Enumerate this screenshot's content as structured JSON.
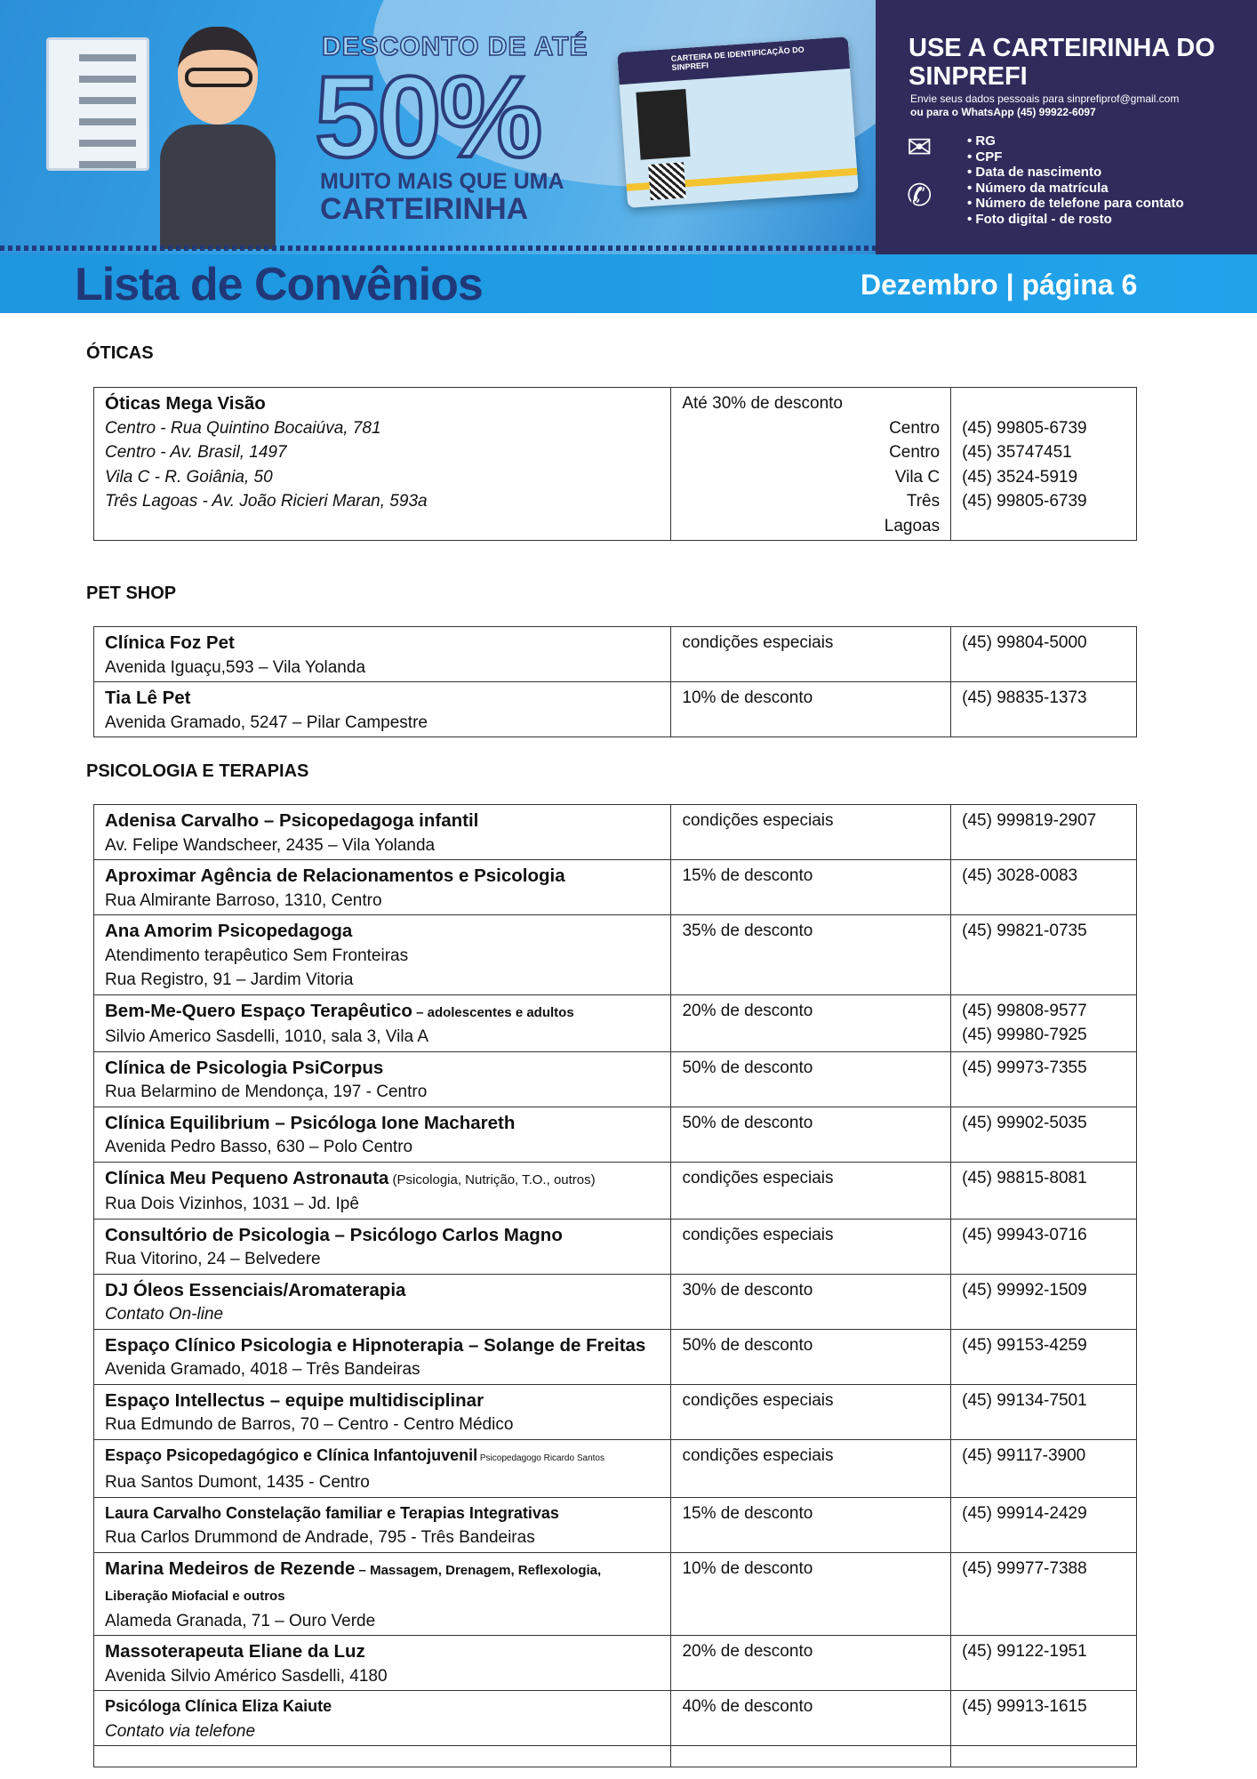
{
  "banner": {
    "desconto_top": "DESCONTO DE ATÉ",
    "desconto_value": "50%",
    "muito_mais": "MUITO MAIS QUE UMA",
    "carteirinha": "CARTEIRINHA",
    "card_title": "CARTEIRA DE IDENTIFICAÇÃO DO SINPREFI",
    "right_title": "USE A  CARTEIRINHA DO SINPREFI",
    "info_line1": "Envie seus dados pessoais para sinprefiprof@gmail.com",
    "info_line2": "ou para o WhatsApp (45) 99922-6097",
    "requirements": [
      "• RG",
      "• CPF",
      "• Data de nascimento",
      "• Número da matrícula",
      "• Número de telefone para contato",
      "• Foto digital - de rosto"
    ],
    "list_title": "Lista de Convênios",
    "page_label": "Dezembro | página 6",
    "colors": {
      "navy": "#2f2c5c",
      "blue": "#21a3ea",
      "title": "#213878"
    }
  },
  "oticas": {
    "heading": "ÓTICAS",
    "name": "Óticas Mega Visão",
    "discount": "Até 30% de desconto",
    "addresses": [
      "Centro - Rua Quintino Bocaiúva, 781",
      "Centro - Av. Brasil, 1497",
      "Vila C - R. Goiânia, 50",
      "Três Lagoas - Av. João Ricieri Maran, 593a"
    ],
    "locations": [
      "Centro",
      "Centro",
      "Vila C",
      "Três",
      "Lagoas"
    ],
    "phones": [
      "(45) 99805-6739",
      "(45) 35747451",
      "(45) 3524-5919",
      "(45) 99805-6739"
    ]
  },
  "petshop": {
    "heading": "PET SHOP",
    "rows": [
      {
        "name": "Clínica Foz Pet",
        "address": "Avenida Iguaçu,593 – Vila Yolanda",
        "discount": "condições especiais",
        "phone": "(45) 99804-5000"
      },
      {
        "name": "Tia Lê Pet",
        "address": "Avenida Gramado, 5247 – Pilar Campestre",
        "discount": "10% de desconto",
        "phone": "(45) 98835-1373"
      }
    ]
  },
  "psicologia": {
    "heading": "PSICOLOGIA E TERAPIAS",
    "rows": [
      {
        "name": "Adenisa Carvalho – Psicopedagoga infantil",
        "lines": [
          "Av. Felipe Wandscheer, 2435 – Vila Yolanda"
        ],
        "discount": "condições especiais",
        "phones": [
          "(45) 999819-2907"
        ]
      },
      {
        "name": "Aproximar Agência de Relacionamentos e Psicologia",
        "lines": [
          "Rua Almirante Barroso, 1310, Centro"
        ],
        "discount": "15% de desconto",
        "phones": [
          "(45) 3028-0083"
        ]
      },
      {
        "name": "Ana Amorim Psicopedagoga",
        "lines": [
          "Atendimento terapêutico Sem Fronteiras",
          "Rua Registro, 91 – Jardim Vitoria"
        ],
        "discount": "35% de desconto",
        "phones": [
          "(45) 99821-0735"
        ]
      },
      {
        "name": "Bem-Me-Quero Espaço Terapêutico",
        "suffix": " – adolescentes e adultos",
        "lines": [
          "Silvio Americo Sasdelli, 1010, sala 3, Vila A"
        ],
        "discount": "20% de desconto",
        "phones": [
          "(45) 99808-9577",
          "(45) 99980-7925"
        ]
      },
      {
        "name": "Clínica de Psicologia PsiCorpus",
        "lines": [
          "Rua Belarmino de Mendonça, 197 - Centro"
        ],
        "discount": "50% de desconto",
        "phones": [
          "(45) 99973-7355"
        ]
      },
      {
        "name": "Clínica Equilibrium – Psicóloga Ione Machareth",
        "lines": [
          "Avenida Pedro Basso, 630 – Polo Centro"
        ],
        "discount": "50% de desconto",
        "phones": [
          "(45) 99902-5035"
        ]
      },
      {
        "name": "Clínica Meu Pequeno Astronauta",
        "note": " (Psicologia, Nutrição, T.O., outros)",
        "lines": [
          "Rua Dois Vizinhos, 1031 – Jd. Ipê"
        ],
        "discount": "condições especiais",
        "phones": [
          "(45) 98815-8081"
        ]
      },
      {
        "name": "Consultório de Psicologia – Psicólogo Carlos Magno",
        "lines": [
          "Rua Vitorino, 24 – Belvedere"
        ],
        "discount": "condições especiais",
        "phones": [
          "(45) 99943-0716"
        ]
      },
      {
        "name": "DJ Óleos Essenciais/Aromaterapia",
        "italic_lines": [
          "Contato On-line"
        ],
        "discount": "30% de desconto",
        "phones": [
          "(45) 99992-1509"
        ]
      },
      {
        "name": "Espaço Clínico Psicologia e Hipnoterapia – Solange de Freitas",
        "lines": [
          "Avenida Gramado, 4018 – Três Bandeiras"
        ],
        "discount": "50% de desconto",
        "phones": [
          "(45) 99153-4259"
        ]
      },
      {
        "name": "Espaço Intellectus – equipe multidisciplinar",
        "lines": [
          "Rua Edmundo de Barros, 70 – Centro - Centro Médico"
        ],
        "discount": "condições especiais",
        "phones": [
          "(45) 99134-7501"
        ]
      },
      {
        "name": "Espaço Psicopedagógico e Clínica Infantojuvenil",
        "note": " Psicopedagogo Ricardo Santos",
        "small": true,
        "lines": [
          " Rua Santos Dumont, 1435 - Centro"
        ],
        "discount": "condições especiais",
        "phones": [
          "(45) 99117-3900"
        ]
      },
      {
        "name": "Laura Carvalho Constelação familiar e Terapias Integrativas",
        "small": true,
        "lines": [
          "Rua Carlos Drummond de Andrade, 795 - Três Bandeiras"
        ],
        "discount": "15% de desconto",
        "phones": [
          "(45) 99914-2429"
        ]
      },
      {
        "name": "Marina Medeiros de Rezende",
        "suffix": " – Massagem, Drenagem, Reflexologia, Liberação Miofacial e outros",
        "lines": [
          "Alameda Granada, 71 – Ouro Verde"
        ],
        "discount": "10% de desconto",
        "phones": [
          "(45) 99977-7388"
        ]
      },
      {
        "name": "Massoterapeuta Eliane da Luz",
        "lines": [
          "Avenida Silvio Américo Sasdelli, 4180"
        ],
        "discount": "20% de desconto",
        "phones": [
          "(45) 99122-1951"
        ]
      },
      {
        "name": "Psicóloga Clínica Eliza Kaiute",
        "small": true,
        "italic_lines": [
          "Contato via telefone"
        ],
        "discount": "40% de desconto",
        "phones": [
          "(45) 99913-1615"
        ]
      }
    ]
  }
}
